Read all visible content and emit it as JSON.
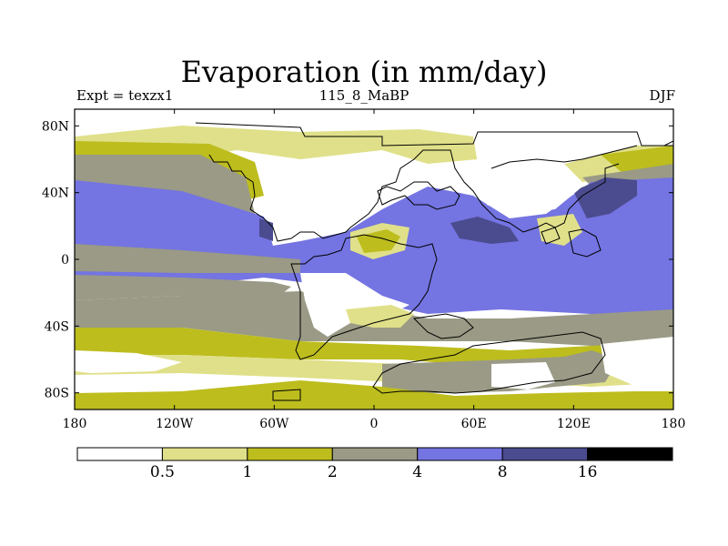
{
  "title": "Evaporation (in mm/day)",
  "subtitle_left": "Expt = texzx1",
  "subtitle_center": "115_8_MaBP",
  "subtitle_right": "DJF",
  "colors": {
    "lt0_5": "#ffffff",
    "c0_5_1": "#e0e08a",
    "c1_2": "#bdbd1e",
    "c2_4": "#9a9a86",
    "c4_8": "#7474e2",
    "c8_16": "#4b4b8f",
    "gt16": "#000000"
  },
  "chart_data": {
    "type": "filled-contour-map",
    "variable": "Evaporation",
    "units": "mm/day",
    "season": "DJF",
    "lon_range": [
      -180,
      180
    ],
    "lat_range": [
      -90,
      90
    ],
    "x_ticks": [
      {
        "value": -180,
        "label": "180"
      },
      {
        "value": -120,
        "label": "120W"
      },
      {
        "value": -60,
        "label": "60W"
      },
      {
        "value": 0,
        "label": "0"
      },
      {
        "value": 60,
        "label": "60E"
      },
      {
        "value": 120,
        "label": "120E"
      },
      {
        "value": 180,
        "label": "180"
      }
    ],
    "y_ticks": [
      {
        "value": 80,
        "label": "80N"
      },
      {
        "value": 40,
        "label": "40N"
      },
      {
        "value": 0,
        "label": "0"
      },
      {
        "value": -40,
        "label": "40S"
      },
      {
        "value": -80,
        "label": "80S"
      }
    ],
    "colorbar": {
      "bins": [
        "lt0_5",
        "c0_5_1",
        "c1_2",
        "c2_4",
        "c4_8",
        "c8_16",
        "gt16"
      ],
      "labels": [
        "0.5",
        "1",
        "2",
        "4",
        "8",
        "16"
      ]
    }
  }
}
